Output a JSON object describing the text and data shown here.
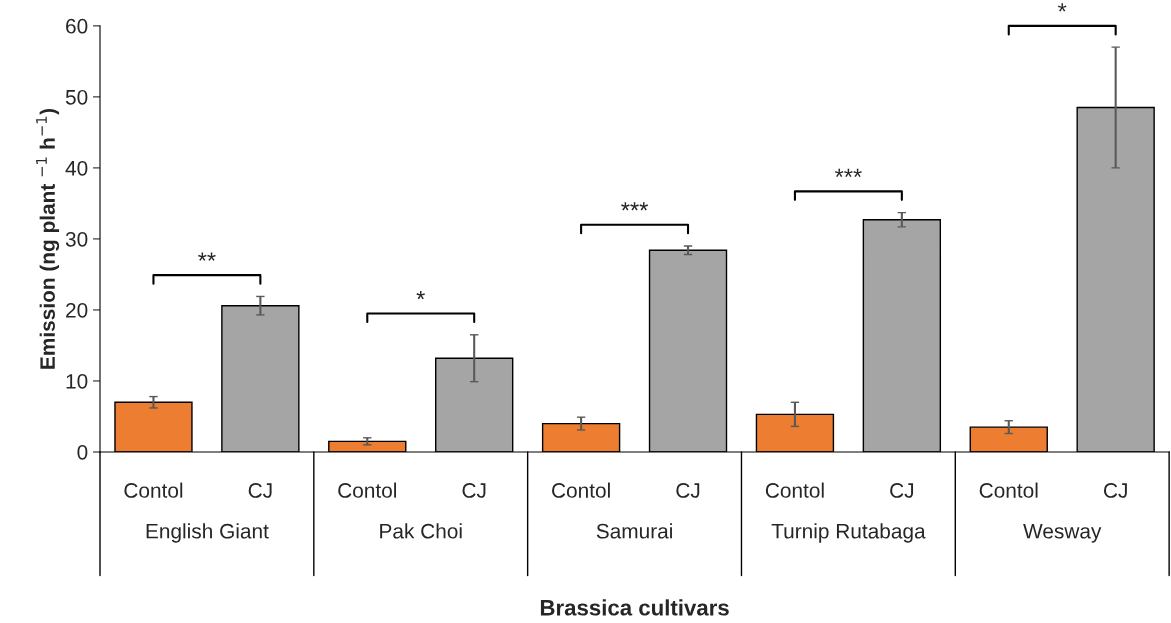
{
  "chart_data": {
    "type": "bar",
    "xlabel": "Brassica cultivars",
    "ylabel": "Emission (ng plant $^{−1}$ h$^{−1}$)",
    "categories": [
      "Contol",
      "CJ",
      "Contol",
      "CJ",
      "Contol",
      "CJ",
      "Contol",
      "CJ",
      "Contol",
      "CJ"
    ],
    "values": [
      7.0,
      20.6,
      1.5,
      13.2,
      4.0,
      28.4,
      5.3,
      32.7,
      3.5,
      48.5
    ],
    "errors": [
      0.8,
      1.3,
      0.5,
      3.3,
      0.9,
      0.6,
      1.7,
      1.0,
      0.9,
      8.5
    ],
    "colors": [
      "#ed7d31",
      "#a5a5a5",
      "#ed7d31",
      "#a5a5a5",
      "#ed7d31",
      "#a5a5a5",
      "#ed7d31",
      "#a5a5a5",
      "#ed7d31",
      "#a5a5a5"
    ],
    "ylim": [
      0,
      60
    ],
    "yticks": [
      0,
      10,
      20,
      30,
      40,
      50,
      60
    ],
    "grid": false,
    "annotations": [
      "English Giant",
      "Pak Choi",
      "Samurai",
      "Turnip Rutabaga",
      "Wesway",
      "**",
      "*",
      "***",
      "***",
      "*"
    ]
  }
}
